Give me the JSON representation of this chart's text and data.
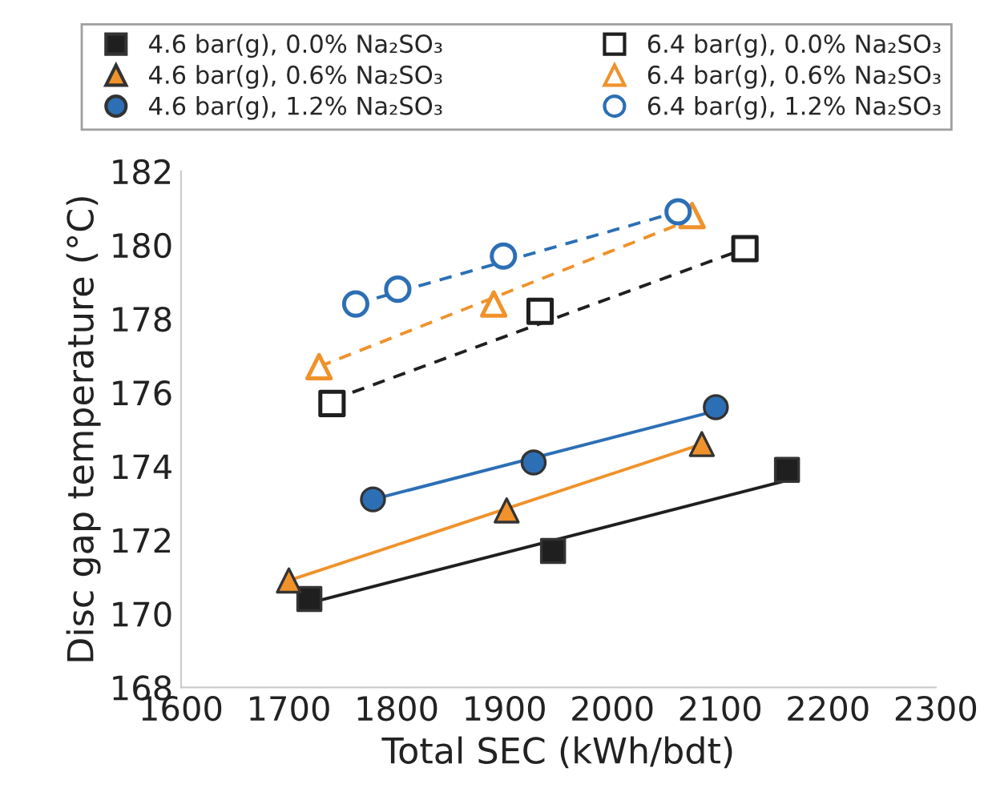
{
  "chart_data": {
    "type": "scatter",
    "xlabel": "Total SEC (kWh/bdt)",
    "ylabel": "Disc gap temperature (°C)",
    "xlim": [
      1600,
      2300
    ],
    "xticks": [
      1600,
      1700,
      1800,
      1900,
      2000,
      2100,
      2200,
      2300
    ],
    "ylim": [
      168,
      182
    ],
    "yticks": [
      168,
      170,
      172,
      174,
      176,
      178,
      180,
      182
    ],
    "grid": false,
    "legend": "top",
    "series": [
      {
        "name": "4.6 bar(g), 0.0% Na₂SO₃",
        "marker": "square",
        "line_style": "solid",
        "color": "#1f1f1f",
        "x": [
          1719,
          1945,
          2162
        ],
        "values": [
          170.4,
          171.7,
          173.9
        ]
      },
      {
        "name": "4.6 bar(g), 0.6% Na₂SO₃",
        "marker": "triangle",
        "line_style": "solid",
        "color": "#f0922b",
        "x": [
          1700,
          1902,
          2083
        ],
        "values": [
          170.9,
          172.8,
          174.6
        ]
      },
      {
        "name": "4.6 bar(g), 1.2% Na₂SO₃",
        "marker": "circle",
        "line_style": "solid",
        "color": "#2c6fb5",
        "x": [
          1778,
          1927,
          2096
        ],
        "values": [
          173.1,
          174.1,
          175.6
        ]
      },
      {
        "name": "6.4 bar(g), 0.0% Na₂SO₃",
        "marker": "square",
        "line_style": "dashed",
        "color": "#1f1f1f",
        "x": [
          1740,
          1933,
          2123
        ],
        "values": [
          175.7,
          178.2,
          179.9
        ]
      },
      {
        "name": "6.4 bar(g), 0.6% Na₂SO₃",
        "marker": "triangle",
        "line_style": "dashed",
        "color": "#f0922b",
        "x": [
          1728,
          1890,
          2074
        ],
        "values": [
          176.7,
          178.4,
          180.8
        ]
      },
      {
        "name": "6.4 bar(g), 1.2% Na₂SO₃",
        "marker": "circle",
        "line_style": "dashed",
        "color": "#2c6fb5",
        "x": [
          1762,
          1801,
          1899,
          2061
        ],
        "values": [
          178.4,
          178.8,
          179.7,
          180.9
        ]
      },
      {
        "type": "line",
        "line_style": "solid",
        "color": "#1f1f1f",
        "x": [
          1720,
          2160
        ],
        "values": [
          170.3,
          173.6
        ]
      },
      {
        "type": "line",
        "line_style": "solid",
        "color": "#f0922b",
        "x": [
          1700,
          2083
        ],
        "values": [
          170.9,
          174.6
        ]
      },
      {
        "type": "line",
        "line_style": "solid",
        "color": "#2c6fb5",
        "x": [
          1778,
          2096
        ],
        "values": [
          173.1,
          175.5
        ]
      },
      {
        "type": "line",
        "line_style": "dashed",
        "color": "#1f1f1f",
        "x": [
          1740,
          2123
        ],
        "values": [
          175.8,
          179.9
        ]
      },
      {
        "type": "line",
        "line_style": "dashed",
        "color": "#f0922b",
        "x": [
          1728,
          2074
        ],
        "values": [
          176.7,
          180.7
        ]
      },
      {
        "type": "line",
        "line_style": "dashed",
        "color": "#2c6fb5",
        "x": [
          1762,
          2061
        ],
        "values": [
          178.4,
          180.9
        ]
      }
    ]
  }
}
